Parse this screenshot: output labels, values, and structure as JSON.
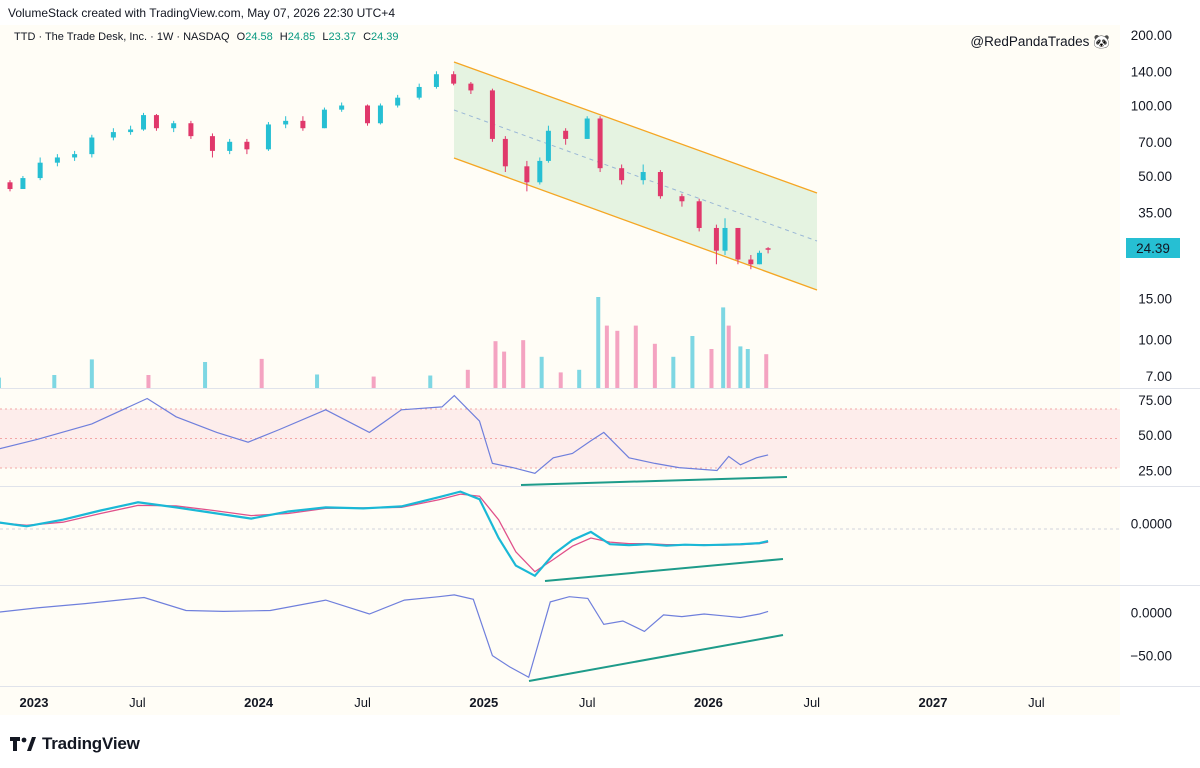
{
  "header": {
    "created_by": "VolumeStack created with TradingView.com, May 07, 2026 22:30 UTC+4"
  },
  "legend": {
    "symbol": "TTD · The Trade Desk, Inc. · 1W · NASDAQ",
    "o_label": "O",
    "o_value": "24.58",
    "h_label": "H",
    "h_value": "24.85",
    "l_label": "L",
    "l_value": "23.37",
    "c_label": "C",
    "c_value": "24.39"
  },
  "watermark": "@RedPandaTrades 🐼",
  "footer": {
    "brand": "TradingView"
  },
  "colors": {
    "up": "#26bfd3",
    "down": "#e0386b",
    "vol_up": "#7ed7e3",
    "vol_down": "#f4a3c1",
    "channel_line": "#f5a623",
    "channel_fill": "#dcefd9",
    "rsi_line": "#6f7fdc",
    "rsi_band": "#fde8e8",
    "macd_line": "#1ab8d6",
    "signal_line": "#e0508a",
    "divergence": "#1e9b8a",
    "price_badge": "#26bfd3",
    "pane_bg": "#fffdf6"
  },
  "chart_data": [
    {
      "type": "candlestick",
      "pane": "price",
      "y_scale": "log",
      "y_ticks": [
        "200.00",
        "140.00",
        "100.00",
        "70.00",
        "50.00",
        "35.00",
        "15.00",
        "10.00",
        "7.00"
      ],
      "ylim": [
        6.5,
        215
      ],
      "last_price": "24.39",
      "x_ticks": [
        "2023",
        "Jul",
        "2024",
        "Jul",
        "2025",
        "Jul",
        "2026",
        "Jul",
        "2027",
        "Jul"
      ],
      "x_major_ticks": [
        "2023",
        "2024",
        "2025",
        "2026",
        "2027"
      ],
      "series": [
        {
          "x": "2022-11-28",
          "o": 49,
          "h": 52,
          "l": 47,
          "c": 47
        },
        {
          "x": "2022-12-19",
          "o": 47,
          "h": 48,
          "l": 43,
          "c": 44
        },
        {
          "x": "2023-01-09",
          "o": 44,
          "h": 50,
          "l": 44,
          "c": 49
        },
        {
          "x": "2023-02-06",
          "o": 49,
          "h": 60,
          "l": 48,
          "c": 57
        },
        {
          "x": "2023-03-06",
          "o": 57,
          "h": 62,
          "l": 55,
          "c": 60
        },
        {
          "x": "2023-04-03",
          "o": 60,
          "h": 64,
          "l": 58,
          "c": 62
        },
        {
          "x": "2023-05-01",
          "o": 62,
          "h": 75,
          "l": 60,
          "c": 73
        },
        {
          "x": "2023-06-05",
          "o": 73,
          "h": 80,
          "l": 71,
          "c": 77
        },
        {
          "x": "2023-07-03",
          "o": 77,
          "h": 82,
          "l": 75,
          "c": 79
        },
        {
          "x": "2023-07-24",
          "o": 79,
          "h": 93,
          "l": 78,
          "c": 91
        },
        {
          "x": "2023-08-14",
          "o": 91,
          "h": 92,
          "l": 78,
          "c": 80
        },
        {
          "x": "2023-09-11",
          "o": 80,
          "h": 86,
          "l": 77,
          "c": 84
        },
        {
          "x": "2023-10-09",
          "o": 84,
          "h": 86,
          "l": 72,
          "c": 74
        },
        {
          "x": "2023-11-13",
          "o": 74,
          "h": 76,
          "l": 60,
          "c": 64
        },
        {
          "x": "2023-12-11",
          "o": 64,
          "h": 72,
          "l": 62,
          "c": 70
        },
        {
          "x": "2024-01-08",
          "o": 70,
          "h": 72,
          "l": 62,
          "c": 65
        },
        {
          "x": "2024-02-12",
          "o": 65,
          "h": 85,
          "l": 64,
          "c": 83
        },
        {
          "x": "2024-03-11",
          "o": 83,
          "h": 90,
          "l": 80,
          "c": 86
        },
        {
          "x": "2024-04-08",
          "o": 86,
          "h": 90,
          "l": 78,
          "c": 80
        },
        {
          "x": "2024-05-13",
          "o": 80,
          "h": 98,
          "l": 80,
          "c": 96
        },
        {
          "x": "2024-06-10",
          "o": 96,
          "h": 103,
          "l": 94,
          "c": 100
        },
        {
          "x": "2024-07-22",
          "o": 100,
          "h": 101,
          "l": 82,
          "c": 84
        },
        {
          "x": "2024-08-12",
          "o": 84,
          "h": 102,
          "l": 83,
          "c": 100
        },
        {
          "x": "2024-09-09",
          "o": 100,
          "h": 111,
          "l": 98,
          "c": 108
        },
        {
          "x": "2024-10-14",
          "o": 108,
          "h": 124,
          "l": 106,
          "c": 120
        },
        {
          "x": "2024-11-11",
          "o": 120,
          "h": 140,
          "l": 118,
          "c": 136
        },
        {
          "x": "2024-12-09",
          "o": 136,
          "h": 140,
          "l": 122,
          "c": 124
        },
        {
          "x": "2025-01-06",
          "o": 124,
          "h": 126,
          "l": 112,
          "c": 116
        },
        {
          "x": "2025-02-10",
          "o": 116,
          "h": 118,
          "l": 70,
          "c": 72
        },
        {
          "x": "2025-03-03",
          "o": 72,
          "h": 74,
          "l": 52,
          "c": 55
        },
        {
          "x": "2025-04-07",
          "o": 55,
          "h": 58,
          "l": 43,
          "c": 47
        },
        {
          "x": "2025-04-28",
          "o": 47,
          "h": 60,
          "l": 46,
          "c": 58
        },
        {
          "x": "2025-05-12",
          "o": 58,
          "h": 82,
          "l": 57,
          "c": 78
        },
        {
          "x": "2025-06-09",
          "o": 78,
          "h": 80,
          "l": 68,
          "c": 72
        },
        {
          "x": "2025-07-14",
          "o": 72,
          "h": 90,
          "l": 72,
          "c": 88
        },
        {
          "x": "2025-08-04",
          "o": 88,
          "h": 90,
          "l": 52,
          "c": 54
        },
        {
          "x": "2025-09-08",
          "o": 54,
          "h": 56,
          "l": 46,
          "c": 48
        },
        {
          "x": "2025-10-13",
          "o": 48,
          "h": 56,
          "l": 46,
          "c": 52
        },
        {
          "x": "2025-11-10",
          "o": 52,
          "h": 53,
          "l": 40,
          "c": 41
        },
        {
          "x": "2025-12-15",
          "o": 41,
          "h": 42,
          "l": 37,
          "c": 39
        },
        {
          "x": "2026-01-12",
          "o": 39,
          "h": 40,
          "l": 29,
          "c": 30
        },
        {
          "x": "2026-02-09",
          "o": 30,
          "h": 31,
          "l": 21,
          "c": 24
        },
        {
          "x": "2026-02-23",
          "o": 24,
          "h": 33,
          "l": 23,
          "c": 30
        },
        {
          "x": "2026-03-16",
          "o": 30,
          "h": 30,
          "l": 21,
          "c": 22
        },
        {
          "x": "2026-04-06",
          "o": 22,
          "h": 23,
          "l": 20,
          "c": 21
        },
        {
          "x": "2026-04-20",
          "o": 21,
          "h": 24,
          "l": 21,
          "c": 23.5
        },
        {
          "x": "2026-05-04",
          "o": 24.58,
          "h": 24.85,
          "l": 23.37,
          "c": 24.39
        }
      ]
    },
    {
      "type": "bar",
      "pane": "volume",
      "series": [
        {
          "x": "2022-12",
          "v": 2,
          "up": true
        },
        {
          "x": "2023-03",
          "v": 2.5,
          "up": true
        },
        {
          "x": "2023-05",
          "v": 5.5,
          "up": true
        },
        {
          "x": "2023-08",
          "v": 2.5,
          "up": false
        },
        {
          "x": "2023-11",
          "v": 5,
          "up": true
        },
        {
          "x": "2024-02",
          "v": 5.6,
          "up": false
        },
        {
          "x": "2024-05",
          "v": 2.6,
          "up": true
        },
        {
          "x": "2024-08",
          "v": 2.2,
          "up": false
        },
        {
          "x": "2024-11",
          "v": 2.4,
          "up": true
        },
        {
          "x": "2025-01",
          "v": 3.5,
          "up": false
        },
        {
          "x": "2025-02-15",
          "v": 9,
          "up": false
        },
        {
          "x": "2025-03",
          "v": 7,
          "up": false
        },
        {
          "x": "2025-04",
          "v": 9.2,
          "up": false
        },
        {
          "x": "2025-05",
          "v": 6,
          "up": true
        },
        {
          "x": "2025-06",
          "v": 3,
          "up": false
        },
        {
          "x": "2025-07",
          "v": 3.5,
          "up": true
        },
        {
          "x": "2025-08",
          "v": 17.5,
          "up": true
        },
        {
          "x": "2025-08-15",
          "v": 12,
          "up": false
        },
        {
          "x": "2025-09",
          "v": 11,
          "up": false
        },
        {
          "x": "2025-10",
          "v": 12,
          "up": false
        },
        {
          "x": "2025-11",
          "v": 8.5,
          "up": false
        },
        {
          "x": "2025-12",
          "v": 6,
          "up": true
        },
        {
          "x": "2026-01",
          "v": 10,
          "up": true
        },
        {
          "x": "2026-02",
          "v": 7.5,
          "up": false
        },
        {
          "x": "2026-02-20",
          "v": 15.5,
          "up": true
        },
        {
          "x": "2026-03",
          "v": 12,
          "up": false
        },
        {
          "x": "2026-03-20",
          "v": 8,
          "up": true
        },
        {
          "x": "2026-04",
          "v": 7.5,
          "up": true
        },
        {
          "x": "2026-05",
          "v": 6.5,
          "up": false
        }
      ]
    },
    {
      "type": "line",
      "pane": "rsi",
      "y_ticks": [
        "75.00",
        "50.00",
        "25.00"
      ],
      "ylim": [
        14,
        82
      ],
      "band": [
        30,
        70
      ],
      "x": [
        "2022-11-28",
        "2023-02-01",
        "2023-05-01",
        "2023-07-30",
        "2023-09-15",
        "2023-11-20",
        "2024-01-10",
        "2024-03-01",
        "2024-05-15",
        "2024-07-25",
        "2024-09-15",
        "2024-11-20",
        "2024-12-10",
        "2025-01-20",
        "2025-02-10",
        "2025-03-15",
        "2025-04-20",
        "2025-05-20",
        "2025-06-20",
        "2025-07-20",
        "2025-08-10",
        "2025-09-20",
        "2025-11-01",
        "2025-12-10",
        "2026-02-10",
        "2026-03-01",
        "2026-03-20",
        "2026-04-15",
        "2026-05-04"
      ],
      "values": [
        40,
        47,
        58,
        76,
        63,
        52,
        45,
        54,
        68,
        52,
        68,
        70,
        78,
        60,
        30,
        27,
        23,
        34,
        37,
        46,
        52,
        34,
        30,
        27,
        25,
        35,
        29,
        34,
        36
      ]
    },
    {
      "type": "line",
      "pane": "macd",
      "y_ticks": [
        "0.0000"
      ],
      "ylim": [
        -12,
        7
      ],
      "x": [
        "2022-11-28",
        "2023-01-15",
        "2023-03-15",
        "2023-05-15",
        "2023-07-15",
        "2023-09-15",
        "2023-11-15",
        "2024-01-15",
        "2024-03-15",
        "2024-05-15",
        "2024-07-15",
        "2024-09-15",
        "2024-11-15",
        "2024-12-20",
        "2025-01-20",
        "2025-02-20",
        "2025-03-20",
        "2025-04-20",
        "2025-05-20",
        "2025-06-20",
        "2025-07-20",
        "2025-08-20",
        "2025-09-20",
        "2025-10-20",
        "2025-11-20",
        "2025-12-20",
        "2026-01-20",
        "2026-02-20",
        "2026-03-20",
        "2026-04-20",
        "2026-05-04"
      ],
      "series": [
        {
          "values": [
            0.3,
            -0.5,
            0.8,
            2.6,
            4.2,
            3.2,
            2.1,
            1.0,
            2.4,
            3.2,
            3.0,
            3.4,
            5.2,
            6.3,
            4.8,
            -2.8,
            -8.2,
            -10.2,
            -6.0,
            -3.2,
            -1.6,
            -4.0,
            -4.2,
            -4.0,
            -4.3,
            -4.1,
            -4.2,
            -4.1,
            -4.0,
            -3.8,
            -3.4
          ]
        },
        {
          "values": [
            0.2,
            -0.3,
            0.3,
            2.0,
            3.6,
            3.5,
            2.6,
            1.6,
            2.0,
            3.0,
            3.1,
            3.2,
            4.7,
            5.8,
            5.4,
            0.8,
            -5.5,
            -9.4,
            -7.0,
            -4.4,
            -2.8,
            -3.6,
            -3.9,
            -3.9,
            -4.1,
            -4.1,
            -4.1,
            -4.2,
            -4.1,
            -3.9,
            -3.6
          ]
        }
      ]
    },
    {
      "type": "line",
      "pane": "oscillator",
      "y_ticks": [
        "0.0000",
        "−50.00"
      ],
      "ylim": [
        -85,
        28
      ],
      "x": [
        "2022-11-28",
        "2023-02-01",
        "2023-04-20",
        "2023-07-25",
        "2023-10-01",
        "2023-12-01",
        "2024-02-15",
        "2024-05-15",
        "2024-07-25",
        "2024-09-20",
        "2024-11-15",
        "2024-12-10",
        "2025-01-10",
        "2025-02-10",
        "2025-03-10",
        "2025-04-10",
        "2025-05-15",
        "2025-06-15",
        "2025-07-15",
        "2025-08-10",
        "2025-09-10",
        "2025-10-15",
        "2025-11-15",
        "2025-12-15",
        "2026-01-20",
        "2026-02-20",
        "2026-03-20",
        "2026-04-20",
        "2026-05-04"
      ],
      "values": [
        0,
        5,
        10,
        17,
        2,
        1,
        2,
        14,
        -2,
        14,
        18,
        20,
        15,
        -50,
        -63,
        -75,
        12,
        18,
        16,
        -14,
        -10,
        -22,
        -3,
        -5,
        -2,
        -4,
        -6,
        -2,
        1
      ]
    }
  ]
}
